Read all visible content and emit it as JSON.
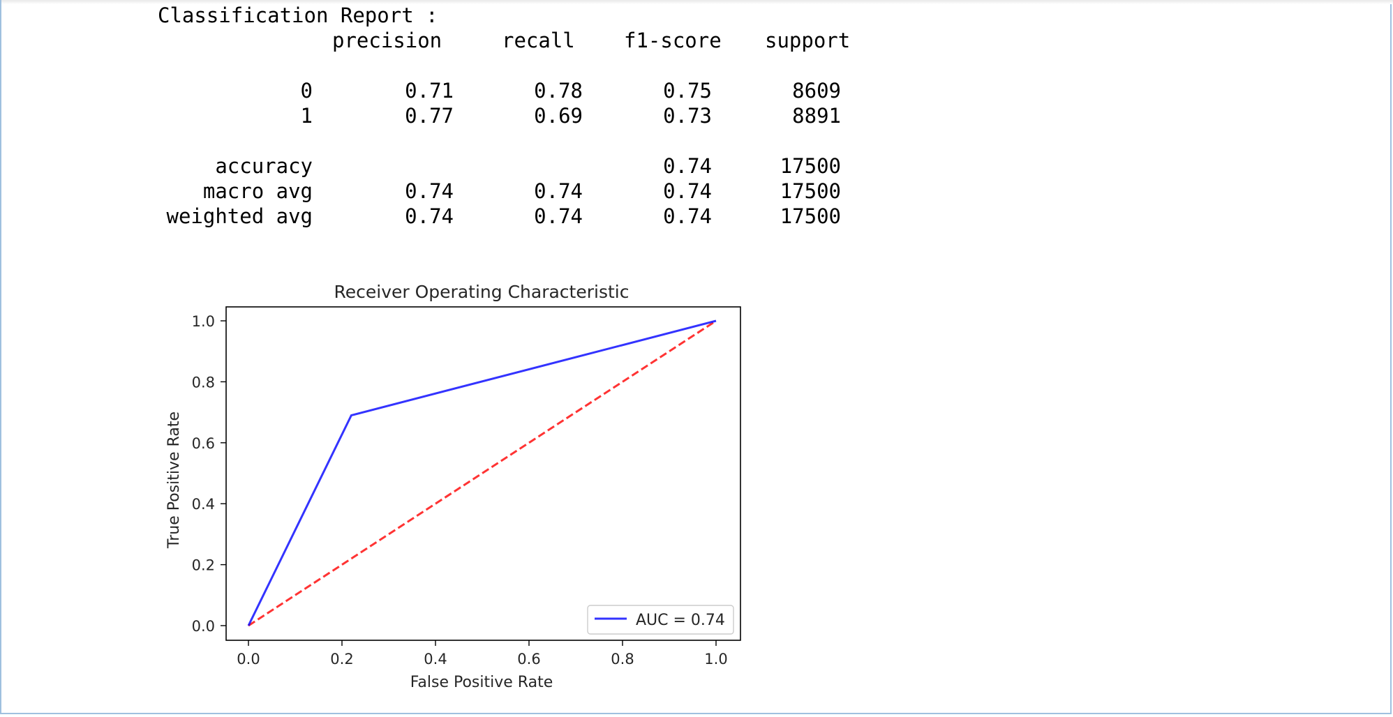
{
  "report": {
    "title": "Classification Report :",
    "headers": [
      "precision",
      "recall",
      "f1-score",
      "support"
    ],
    "rows": [
      {
        "label": "0",
        "precision": "0.71",
        "recall": "0.78",
        "f1": "0.75",
        "support": "8609"
      },
      {
        "label": "1",
        "precision": "0.77",
        "recall": "0.69",
        "f1": "0.73",
        "support": "8891"
      }
    ],
    "summary": [
      {
        "label": "accuracy",
        "precision": "",
        "recall": "",
        "f1": "0.74",
        "support": "17500"
      },
      {
        "label": "macro avg",
        "precision": "0.74",
        "recall": "0.74",
        "f1": "0.74",
        "support": "17500"
      },
      {
        "label": "weighted avg",
        "precision": "0.74",
        "recall": "0.74",
        "f1": "0.74",
        "support": "17500"
      }
    ]
  },
  "chart_data": {
    "type": "line",
    "title": "Receiver Operating Characteristic",
    "xlabel": "False Positive Rate",
    "ylabel": "True Positive Rate",
    "xlim": [
      0.0,
      1.0
    ],
    "ylim": [
      0.0,
      1.0
    ],
    "xticks": [
      "0.0",
      "0.2",
      "0.4",
      "0.6",
      "0.8",
      "1.0"
    ],
    "yticks": [
      "0.0",
      "0.2",
      "0.4",
      "0.6",
      "0.8",
      "1.0"
    ],
    "grid": false,
    "legend_position": "lower-right",
    "series": [
      {
        "name": "AUC = 0.74",
        "color": "#0000ff",
        "style": "solid",
        "x": [
          0.0,
          0.22,
          1.0
        ],
        "y": [
          0.0,
          0.69,
          1.0
        ]
      },
      {
        "color": "#ff0000",
        "style": "dashed",
        "x": [
          0.0,
          1.0
        ],
        "y": [
          0.0,
          1.0
        ]
      }
    ]
  }
}
